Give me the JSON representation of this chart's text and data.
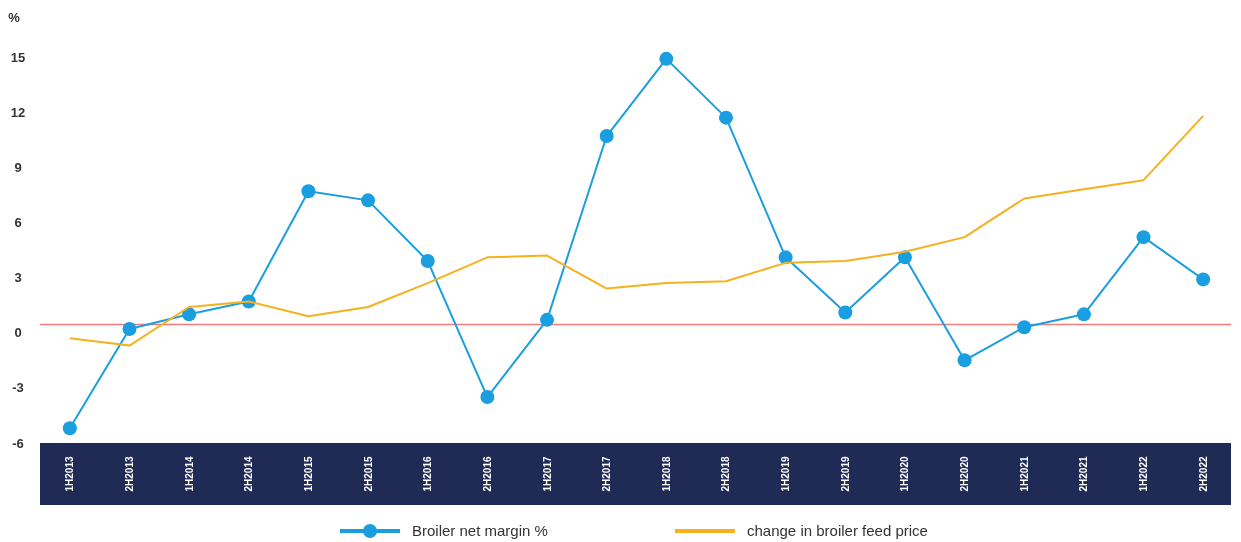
{
  "chart_data": {
    "type": "line",
    "ylabel": "%",
    "categories": [
      "1H2013",
      "2H2013",
      "1H2014",
      "2H2014",
      "1H2015",
      "2H2015",
      "1H2016",
      "2H2016",
      "1H2017",
      "2H2017",
      "1H2018",
      "2H2018",
      "1H2019",
      "2H2019",
      "1H2020",
      "2H2020",
      "1H2021",
      "2H2021",
      "1H2022",
      "2H2022"
    ],
    "series": [
      {
        "name": "Broiler net margin %",
        "color": "#1a9ee0",
        "marker": "circle",
        "values": [
          -5.2,
          0.2,
          1.0,
          1.7,
          7.7,
          7.2,
          3.9,
          -3.5,
          0.7,
          10.7,
          14.9,
          11.7,
          4.1,
          1.1,
          4.1,
          -1.5,
          0.3,
          1.0,
          5.2,
          2.9
        ]
      },
      {
        "name": "change in broiler feed price",
        "color": "#f5b11e",
        "marker": "none",
        "values": [
          -0.3,
          -0.7,
          1.4,
          1.7,
          0.9,
          1.4,
          2.7,
          4.1,
          4.2,
          2.4,
          2.7,
          2.8,
          3.8,
          3.9,
          4.4,
          5.2,
          7.3,
          7.8,
          8.3,
          11.8
        ]
      }
    ],
    "ylim": [
      -6,
      15
    ],
    "yticks": [
      -6,
      -3,
      0,
      3,
      6,
      9,
      12,
      15
    ],
    "ref_lines": [
      {
        "axis": "y",
        "value": 0.45,
        "color": "#f07c7c"
      }
    ],
    "grid": false,
    "legend": "bottom",
    "line_style": "solid"
  }
}
